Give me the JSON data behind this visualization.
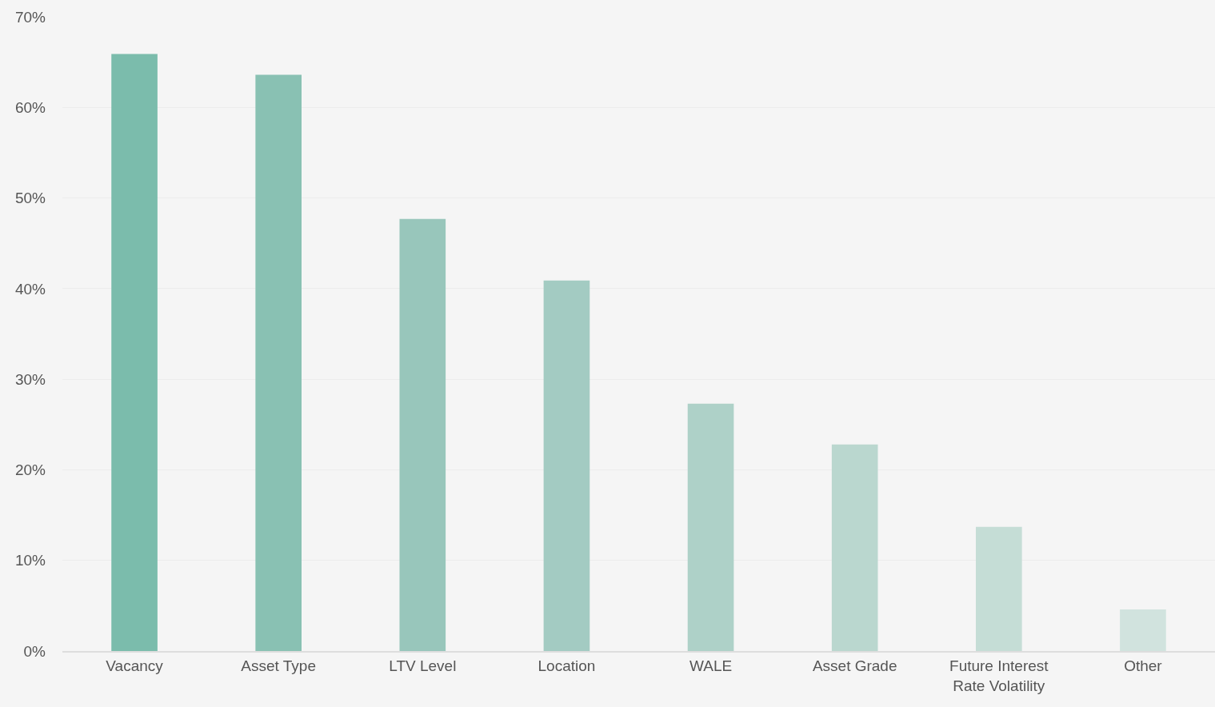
{
  "chart_data": {
    "type": "bar",
    "categories": [
      "Vacancy",
      "Asset Type",
      "LTV Level",
      "Location",
      "WALE",
      "Asset Grade",
      "Future Interest Rate Volatility",
      "Other"
    ],
    "values": [
      65.9,
      63.6,
      47.7,
      40.9,
      27.3,
      22.8,
      13.7,
      4.6
    ],
    "colors": [
      "#7bbcac",
      "#89c1b3",
      "#98c6bb",
      "#a3cbc2",
      "#aed1c8",
      "#bad7cf",
      "#c5ddd6",
      "#d1e3de"
    ],
    "ylim": [
      0,
      70
    ],
    "yticks": [
      {
        "value": 0,
        "label": "0%"
      },
      {
        "value": 10,
        "label": "10%"
      },
      {
        "value": 20,
        "label": "20%"
      },
      {
        "value": 30,
        "label": "30%"
      },
      {
        "value": 40,
        "label": "40%"
      },
      {
        "value": 50,
        "label": "50%"
      },
      {
        "value": 60,
        "label": "60%"
      },
      {
        "value": 70,
        "label": "70%"
      }
    ],
    "grid": "y",
    "legend": false
  }
}
